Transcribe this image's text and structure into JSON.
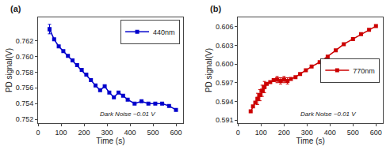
{
  "chart_data": [
    {
      "type": "line",
      "title": "(a)",
      "xlabel": "Time (s)",
      "ylabel": "PD signal(V)",
      "x": [
        50,
        70,
        90,
        110,
        130,
        150,
        170,
        190,
        210,
        230,
        250,
        270,
        290,
        310,
        330,
        350,
        370,
        390,
        420,
        450,
        480,
        510,
        540,
        570,
        600
      ],
      "series": [
        {
          "name": "440nm",
          "color": "#0000cc",
          "marker": "square",
          "values": [
            0.7635,
            0.7622,
            0.7613,
            0.7607,
            0.7601,
            0.7595,
            0.7589,
            0.7583,
            0.7577,
            0.757,
            0.7563,
            0.7557,
            0.7562,
            0.7554,
            0.7548,
            0.7554,
            0.755,
            0.7545,
            0.754,
            0.7543,
            0.754,
            0.754,
            0.754,
            0.7537,
            0.7532
          ],
          "errors": [
            0.0006,
            null,
            null,
            null,
            null,
            null,
            null,
            null,
            null,
            null,
            null,
            null,
            null,
            null,
            null,
            null,
            null,
            null,
            null,
            null,
            null,
            null,
            null,
            null,
            null
          ]
        }
      ],
      "xlim": [
        0,
        630
      ],
      "ylim": [
        0.7515,
        0.765
      ],
      "xticks": [
        0,
        100,
        200,
        300,
        400,
        500,
        600
      ],
      "yticks": [
        0.752,
        0.754,
        0.756,
        0.758,
        {
          "value": 0.76,
          "label": "0.760"
        },
        0.762
      ],
      "annotation": "Dark Noise ~0.01 V",
      "legend": "upper right",
      "grid": false
    },
    {
      "type": "line",
      "title": "(b)",
      "xlabel": "Time (s)",
      "ylabel": "PD signal(V)",
      "x": [
        55,
        65,
        75,
        85,
        95,
        105,
        115,
        125,
        140,
        155,
        170,
        185,
        200,
        215,
        230,
        250,
        270,
        295,
        320,
        355,
        390,
        425,
        460,
        500,
        535,
        570,
        600
      ],
      "series": [
        {
          "name": "770nm",
          "color": "#cc0000",
          "marker": "square",
          "values": [
            0.5924,
            0.5932,
            0.5938,
            0.5944,
            0.595,
            0.5957,
            0.5963,
            0.5968,
            0.5971,
            0.5974,
            0.5975,
            0.5973,
            0.5975,
            0.5973,
            0.5976,
            0.5979,
            0.5984,
            0.599,
            0.5996,
            0.6003,
            0.6012,
            0.6022,
            0.6032,
            0.604,
            0.6048,
            0.6055,
            0.6061
          ],
          "errors": [
            null,
            null,
            null,
            0.0009,
            0.0009,
            0.0009,
            0.0009,
            null,
            null,
            null,
            0.0005,
            0.0005,
            0.0005,
            0.0005,
            null,
            null,
            null,
            null,
            null,
            null,
            null,
            null,
            null,
            null,
            null,
            null,
            null
          ]
        }
      ],
      "xlim": [
        0,
        630
      ],
      "ylim": [
        0.5905,
        0.6075
      ],
      "xticks": [
        0,
        100,
        200,
        300,
        400,
        500,
        600
      ],
      "yticks": [
        0.591,
        0.594,
        0.597,
        {
          "value": 0.6,
          "label": "0.600"
        },
        0.603,
        0.606
      ],
      "annotation": "Dark Noise ~0.01 V",
      "legend": "center right",
      "grid": false
    }
  ]
}
